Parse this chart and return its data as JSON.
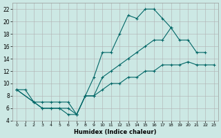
{
  "xlabel": "Humidex (Indice chaleur)",
  "bg_color": "#cce8e4",
  "line_color": "#006666",
  "grid_color": "#b0b0b0",
  "xlim": [
    -0.5,
    23.5
  ],
  "ylim": [
    4,
    23
  ],
  "xticks": [
    0,
    1,
    2,
    3,
    4,
    5,
    6,
    7,
    8,
    9,
    10,
    11,
    12,
    13,
    14,
    15,
    16,
    17,
    18,
    19,
    20,
    21,
    22,
    23
  ],
  "yticks": [
    4,
    6,
    8,
    10,
    12,
    14,
    16,
    18,
    20,
    22
  ],
  "line1_x": [
    0,
    1,
    2,
    3,
    4,
    5,
    6,
    7,
    8,
    9,
    10,
    11,
    12,
    13,
    14,
    15,
    16,
    17,
    18
  ],
  "line1_y": [
    9,
    9,
    7,
    6,
    6,
    6,
    5,
    5,
    8,
    11,
    15,
    15,
    18,
    21,
    20.5,
    22,
    22,
    20.5,
    19
  ],
  "line2_x": [
    0,
    2,
    3,
    4,
    5,
    6,
    7,
    8,
    9,
    10,
    11,
    12,
    13,
    14,
    15,
    16,
    17,
    18,
    19,
    20,
    21,
    22
  ],
  "line2_y": [
    9,
    7,
    6,
    6,
    6,
    6,
    5,
    8,
    8,
    11,
    12,
    13,
    14,
    15,
    16,
    17,
    17,
    19,
    17,
    17,
    15,
    15
  ],
  "line3_x": [
    0,
    2,
    3,
    4,
    5,
    6,
    7,
    8,
    9,
    10,
    11,
    12,
    13,
    14,
    15,
    16,
    17,
    18,
    19,
    20,
    21,
    22,
    23
  ],
  "line3_y": [
    9,
    7,
    7,
    7,
    7,
    7,
    5,
    8,
    8,
    9,
    10,
    10,
    11,
    11,
    12,
    12,
    13,
    13,
    13,
    13.5,
    13,
    13,
    13
  ]
}
